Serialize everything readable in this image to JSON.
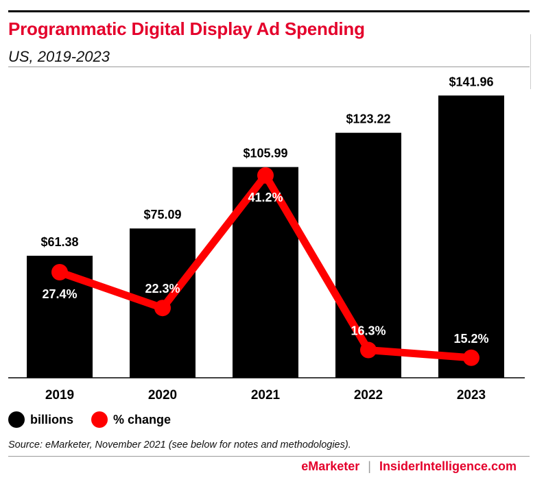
{
  "header": {
    "title": "Programmatic Digital Display Ad Spending",
    "subtitle": "US, 2019-2023"
  },
  "legend": {
    "bar_label": "billions",
    "line_label": "% change"
  },
  "source": "Source: eMarketer, November 2021 (see below for notes and methodologies).",
  "footer": {
    "brand_a": "eMarketer",
    "separator": "|",
    "brand_b": "InsiderIntelligence.com"
  },
  "colors": {
    "bar": "#000000",
    "line": "#ff0000",
    "title": "#e4002b"
  },
  "chart_data": {
    "type": "bar",
    "title": "Programmatic Digital Display Ad Spending",
    "subtitle": "US, 2019-2023",
    "categories": [
      "2019",
      "2020",
      "2021",
      "2022",
      "2023"
    ],
    "series": [
      {
        "name": "billions",
        "type": "bar",
        "values": [
          61.38,
          75.09,
          105.99,
          123.22,
          141.96
        ],
        "labels": [
          "$61.38",
          "$75.09",
          "$105.99",
          "$123.22",
          "$141.96"
        ]
      },
      {
        "name": "% change",
        "type": "line",
        "values": [
          27.4,
          22.3,
          41.2,
          16.3,
          15.2
        ],
        "labels": [
          "27.4%",
          "22.3%",
          "41.2%",
          "16.3%",
          "15.2%"
        ]
      }
    ],
    "bar_ylim": [
      0,
      150
    ],
    "line_ylim": [
      10,
      45
    ],
    "grid": false,
    "legend_position": "bottom-left"
  }
}
